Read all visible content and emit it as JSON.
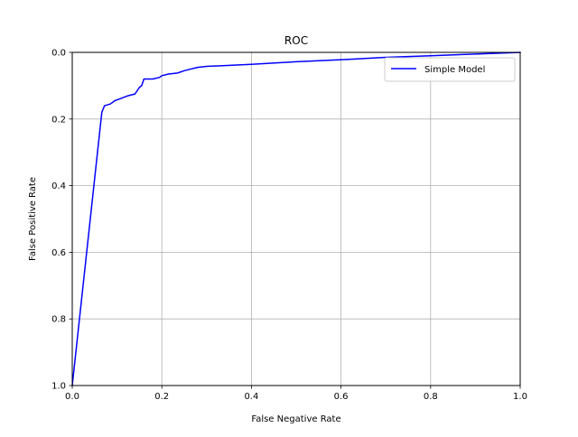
{
  "chart_data": {
    "type": "line",
    "title": "ROC",
    "xlabel": "False Negative Rate",
    "ylabel": "False Positive Rate",
    "xlim": [
      0.0,
      1.0
    ],
    "ylim": [
      0.0,
      1.0
    ],
    "y_inverted": true,
    "grid": true,
    "legend_position": "top-right",
    "xticks": [
      "0.0",
      "0.2",
      "0.4",
      "0.6",
      "0.8",
      "1.0"
    ],
    "yticks": [
      "0.0",
      "0.2",
      "0.4",
      "0.6",
      "0.8",
      "1.0"
    ],
    "series": [
      {
        "name": "Simple Model",
        "color": "#0000ff",
        "x": [
          0.0,
          0.066,
          0.072,
          0.085,
          0.095,
          0.105,
          0.115,
          0.125,
          0.14,
          0.15,
          0.155,
          0.16,
          0.18,
          0.195,
          0.2,
          0.215,
          0.235,
          0.25,
          0.265,
          0.28,
          0.3,
          0.4,
          0.5,
          0.6,
          0.7,
          0.8,
          0.9,
          1.0
        ],
        "y": [
          1.0,
          0.18,
          0.16,
          0.155,
          0.145,
          0.14,
          0.135,
          0.13,
          0.125,
          0.105,
          0.1,
          0.08,
          0.08,
          0.075,
          0.07,
          0.065,
          0.062,
          0.055,
          0.05,
          0.045,
          0.042,
          0.036,
          0.028,
          0.022,
          0.015,
          0.01,
          0.005,
          0.0
        ]
      }
    ]
  }
}
